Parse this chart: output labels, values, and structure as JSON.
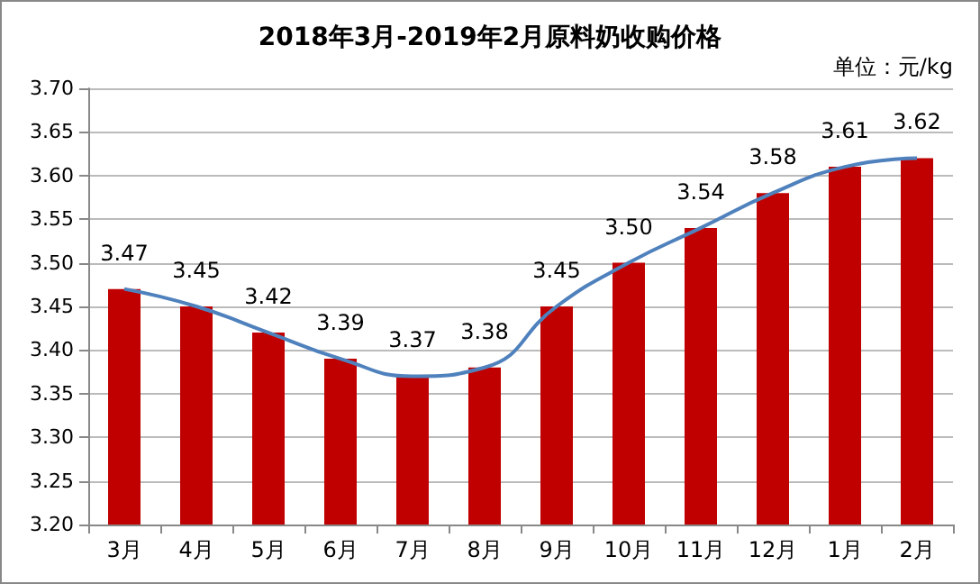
{
  "chart_data": {
    "type": "bar",
    "title": "2018年3月-2019年2月原料奶收购价格",
    "annotations": [
      "单位：元/kg"
    ],
    "categories": [
      "3月",
      "4月",
      "5月",
      "6月",
      "7月",
      "8月",
      "9月",
      "10月",
      "11月",
      "12月",
      "1月",
      "2月"
    ],
    "series": [
      {
        "color": "#c00000",
        "values": [
          3.47,
          3.45,
          3.42,
          3.39,
          3.37,
          3.38,
          3.45,
          3.5,
          3.54,
          3.58,
          3.61,
          3.62
        ],
        "value_labels": [
          "3.47",
          "3.45",
          "3.42",
          "3.39",
          "3.37",
          "3.38",
          "3.45",
          "3.50",
          "3.54",
          "3.58",
          "3.61",
          "3.62"
        ]
      },
      {
        "type": "line",
        "color": "#4f81bd",
        "marker": "none",
        "line_style": "solid",
        "values": [
          3.47,
          3.45,
          3.42,
          3.39,
          3.37,
          3.38,
          3.45,
          3.5,
          3.54,
          3.58,
          3.61,
          3.62
        ]
      }
    ],
    "ylim": [
      3.2,
      3.7
    ],
    "yticks": [
      {
        "value": 3.2,
        "label": "3.20"
      },
      {
        "value": 3.25,
        "label": "3.25"
      },
      {
        "value": 3.3,
        "label": "3.30"
      },
      {
        "value": 3.35,
        "label": "3.35"
      },
      {
        "value": 3.4,
        "label": "3.40"
      },
      {
        "value": 3.45,
        "label": "3.45"
      },
      {
        "value": 3.5,
        "label": "3.50"
      },
      {
        "value": 3.55,
        "label": "3.55"
      },
      {
        "value": 3.6,
        "label": "3.60"
      },
      {
        "value": 3.65,
        "label": "3.65"
      },
      {
        "value": 3.7,
        "label": "3.70"
      }
    ],
    "grid": "y"
  }
}
